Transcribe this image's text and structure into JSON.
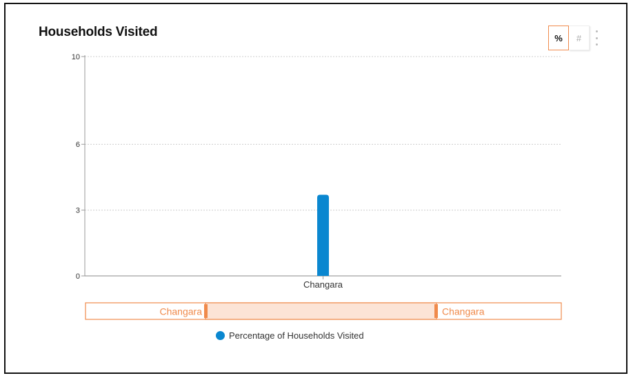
{
  "header": {
    "title": "Households Visited"
  },
  "toolbar": {
    "percent_label": "%",
    "count_label": "#",
    "menu_icon": "more-vertical-icon"
  },
  "colors": {
    "series": "#0a87d0",
    "accent": "#f08a4b",
    "navigator_fill": "#fce4d6",
    "grid": "#cccccc"
  },
  "navigator": {
    "left_label": "Changara",
    "right_label": "Changara"
  },
  "chart_data": {
    "type": "bar",
    "title": "Households Visited",
    "xlabel": "",
    "ylabel": "",
    "categories": [
      "Changara"
    ],
    "series": [
      {
        "name": "Percentage of Households Visited",
        "values": [
          3.7
        ]
      }
    ],
    "ylim": [
      0,
      10
    ],
    "yticks": [
      0,
      3,
      6,
      10
    ],
    "grid": true,
    "legend": "bottom-center"
  }
}
